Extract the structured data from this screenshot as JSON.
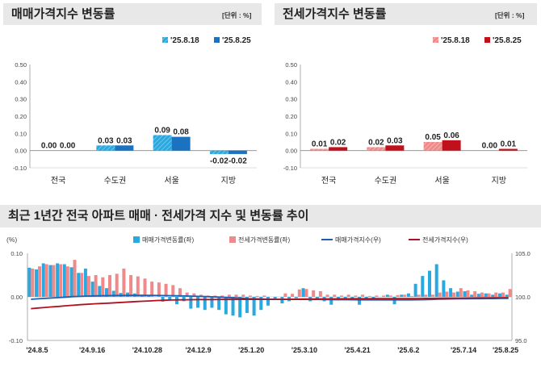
{
  "sale_panel": {
    "title": "매매가격지수 변동률",
    "unit": "[단위 : %]",
    "color_prev": "#2aa8e0",
    "color_curr": "#1b72c0"
  },
  "jeonse_panel": {
    "title": "전세가격지수 변동률",
    "unit": "[단위 : %]",
    "color_prev": "#f08a8a",
    "color_curr": "#c0101c"
  },
  "trend_panel": {
    "title": "최근 1년간 전국 아파트 매매 · 전세가격 지수 및 변동률 추이",
    "left_unit": "(%)",
    "color_sale_rate": "#2aa8e0",
    "color_jeonse_rate": "#f08a8a",
    "color_sale_index": "#1b5fb0",
    "color_jeonse_index": "#b01020"
  },
  "chart_data": [
    {
      "type": "bar",
      "categories": [
        "전국",
        "수도권",
        "서울",
        "지방"
      ],
      "series": [
        {
          "name": "'25.8.18",
          "values": [
            0.0,
            0.03,
            0.09,
            -0.02
          ]
        },
        {
          "name": "'25.8.25",
          "values": [
            0.0,
            0.03,
            0.08,
            -0.02
          ]
        }
      ],
      "data_labels": [
        [
          "0.00",
          "0.03",
          "0.09",
          "-0.02"
        ],
        [
          "0.00",
          "0.03",
          "0.08",
          "-0.02"
        ]
      ],
      "ylim": [
        -0.1,
        0.5
      ],
      "yticks": [
        "0.50",
        "0.40",
        "0.30",
        "0.20",
        "0.10",
        "0.00",
        "-0.10"
      ],
      "legend_position": "top-right"
    },
    {
      "type": "bar",
      "categories": [
        "전국",
        "수도권",
        "서울",
        "지방"
      ],
      "series": [
        {
          "name": "'25.8.18",
          "values": [
            0.01,
            0.02,
            0.05,
            0.0
          ]
        },
        {
          "name": "'25.8.25",
          "values": [
            0.02,
            0.03,
            0.06,
            0.01
          ]
        }
      ],
      "data_labels": [
        [
          "0.01",
          "0.02",
          "0.05",
          "0.00"
        ],
        [
          "0.02",
          "0.03",
          "0.06",
          "0.01"
        ]
      ],
      "ylim": [
        -0.1,
        0.5
      ],
      "yticks": [
        "0.50",
        "0.40",
        "0.30",
        "0.20",
        "0.10",
        "0.00",
        "-0.10"
      ],
      "legend_position": "top-right"
    },
    {
      "type": "bar",
      "x_ticks": [
        "'24.8.5",
        "'24.9.16",
        "'24.10.28",
        "'24.12.9",
        "'25.1.20",
        "'25.3.10",
        "'25.4.21",
        "'25.6.2",
        "'25.7.14",
        "'25.8.25"
      ],
      "y_left_ticks": [
        "0.10",
        "0.00",
        "-0.10"
      ],
      "y_right_ticks": [
        "105.0",
        "100.0",
        "95.0"
      ],
      "ylim_left": [
        -0.1,
        0.1
      ],
      "ylim_right": [
        95.0,
        105.0
      ],
      "series": [
        {
          "name": "매매가격변동률(좌)",
          "type": "bar",
          "axis": "left",
          "values": [
            0.067,
            0.063,
            0.077,
            0.073,
            0.077,
            0.075,
            0.068,
            0.055,
            0.065,
            0.035,
            0.025,
            0.02,
            0.014,
            0.009,
            0.01,
            0.008,
            0.005,
            0.003,
            0.0,
            -0.011,
            -0.008,
            -0.017,
            -0.01,
            -0.027,
            -0.025,
            -0.03,
            -0.025,
            -0.03,
            -0.04,
            -0.043,
            -0.047,
            -0.037,
            -0.043,
            -0.03,
            -0.02,
            -0.007,
            -0.015,
            -0.01,
            -0.003,
            0.02,
            -0.01,
            -0.005,
            -0.01,
            -0.018,
            -0.008,
            -0.003,
            -0.008,
            -0.018,
            -0.005,
            -0.005,
            0.0,
            0.005,
            -0.017,
            0.005,
            0.008,
            0.03,
            0.048,
            0.06,
            0.075,
            0.038,
            0.02,
            0.012,
            0.013,
            0.005,
            0.007,
            0.008,
            0.005,
            0.008,
            0.005
          ]
        },
        {
          "name": "전세가격변동률(좌)",
          "type": "bar",
          "axis": "left",
          "values": [
            0.065,
            0.07,
            0.075,
            0.073,
            0.075,
            0.07,
            0.085,
            0.055,
            0.048,
            0.05,
            0.045,
            0.05,
            0.053,
            0.065,
            0.05,
            0.047,
            0.042,
            0.035,
            0.033,
            0.03,
            0.027,
            0.02,
            0.01,
            0.008,
            0.005,
            0.003,
            0.003,
            0.003,
            0.005,
            0.005,
            0.005,
            0.003,
            0.002,
            0.003,
            0.0,
            0.0,
            0.008,
            0.007,
            0.017,
            0.018,
            0.015,
            0.013,
            0.005,
            0.005,
            0.003,
            0.005,
            0.003,
            0.005,
            0.002,
            0.003,
            0.003,
            0.003,
            0.004,
            0.005,
            0.002,
            0.005,
            0.005,
            0.005,
            0.01,
            0.012,
            0.01,
            0.02,
            0.015,
            0.013,
            0.01,
            0.008,
            0.01,
            0.01,
            0.018
          ]
        },
        {
          "name": "매매가격지수(우)",
          "type": "line",
          "axis": "right",
          "values": [
            99.72,
            99.78,
            99.82,
            99.87,
            99.92,
            99.97,
            100.03,
            100.06,
            100.09,
            100.11,
            100.13,
            100.14,
            100.16,
            100.16,
            100.17,
            100.17,
            100.17,
            100.17,
            100.16,
            100.15,
            100.14,
            100.12,
            100.1,
            100.08,
            100.06,
            100.03,
            100.0,
            99.97,
            99.93,
            99.89,
            99.85,
            99.81,
            99.78,
            99.75,
            99.73,
            99.72,
            99.71,
            99.71,
            99.71,
            99.71,
            99.7,
            99.7,
            99.69,
            99.68,
            99.68,
            99.68,
            99.67,
            99.66,
            99.66,
            99.66,
            99.66,
            99.66,
            99.66,
            99.66,
            99.66,
            99.67,
            99.68,
            99.7,
            99.73,
            99.75,
            99.77,
            99.78,
            99.79,
            99.8,
            99.8,
            99.81,
            99.81,
            99.82,
            99.82
          ]
        },
        {
          "name": "전세가격지수(우)",
          "type": "line",
          "axis": "right",
          "values": [
            98.65,
            98.72,
            98.79,
            98.85,
            98.91,
            98.98,
            99.04,
            99.1,
            99.15,
            99.2,
            99.24,
            99.28,
            99.32,
            99.37,
            99.42,
            99.46,
            99.5,
            99.54,
            99.58,
            99.61,
            99.64,
            99.66,
            99.67,
            99.68,
            99.69,
            99.69,
            99.69,
            99.7,
            99.7,
            99.7,
            99.71,
            99.71,
            99.71,
            99.71,
            99.71,
            99.71,
            99.72,
            99.73,
            99.74,
            99.75,
            99.76,
            99.77,
            99.77,
            99.77,
            99.78,
            99.78,
            99.79,
            99.79,
            99.79,
            99.8,
            99.8,
            99.8,
            99.8,
            99.81,
            99.81,
            99.81,
            99.82,
            99.82,
            99.83,
            99.84,
            99.84,
            99.85,
            99.86,
            99.87,
            99.88,
            99.88,
            99.89,
            99.9,
            99.91
          ]
        }
      ],
      "legend_position": "top"
    }
  ]
}
